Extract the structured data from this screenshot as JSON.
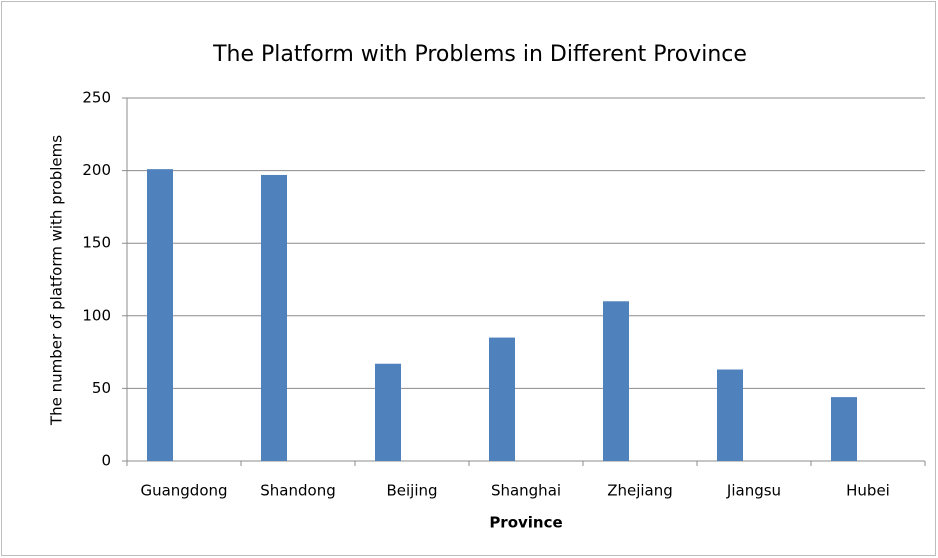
{
  "chart_data": {
    "type": "bar",
    "title": "The Platform with Problems in Different Province",
    "x_label": "Province",
    "y_label": "The number of platform with problems",
    "categories": [
      "Guangdong",
      "Shandong",
      "Beijing",
      "Shanghai",
      "Zhejiang",
      "Jiangsu",
      "Hubei"
    ],
    "values": [
      201,
      197,
      67,
      85,
      110,
      63,
      44
    ],
    "color": "#4f81bd",
    "ylim": [
      0,
      250
    ],
    "yticks": [
      0,
      50,
      100,
      150,
      200,
      250
    ],
    "grid": true
  }
}
